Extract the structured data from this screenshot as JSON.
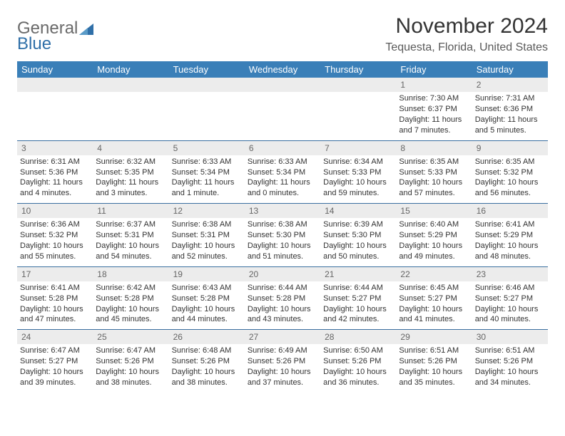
{
  "logo": {
    "text1": "General",
    "text2": "Blue"
  },
  "title": "November 2024",
  "location": "Tequesta, Florida, United States",
  "colors": {
    "header_bg": "#3a7fb8",
    "header_text": "#ffffff",
    "grid_line": "#3a6fa0",
    "daynum_bg": "#ececec",
    "blank_bg": "#f0f0f0",
    "text": "#333333",
    "title_text": "#333333",
    "location_text": "#5a5a5a",
    "logo_gray": "#6a6a6a",
    "logo_blue": "#2f6fa8"
  },
  "day_headers": [
    "Sunday",
    "Monday",
    "Tuesday",
    "Wednesday",
    "Thursday",
    "Friday",
    "Saturday"
  ],
  "weeks": [
    {
      "nums": [
        "",
        "",
        "",
        "",
        "",
        "1",
        "2"
      ],
      "cells": [
        null,
        null,
        null,
        null,
        null,
        {
          "sunrise": "Sunrise: 7:30 AM",
          "sunset": "Sunset: 6:37 PM",
          "daylight": "Daylight: 11 hours and 7 minutes."
        },
        {
          "sunrise": "Sunrise: 7:31 AM",
          "sunset": "Sunset: 6:36 PM",
          "daylight": "Daylight: 11 hours and 5 minutes."
        }
      ]
    },
    {
      "nums": [
        "3",
        "4",
        "5",
        "6",
        "7",
        "8",
        "9"
      ],
      "cells": [
        {
          "sunrise": "Sunrise: 6:31 AM",
          "sunset": "Sunset: 5:36 PM",
          "daylight": "Daylight: 11 hours and 4 minutes."
        },
        {
          "sunrise": "Sunrise: 6:32 AM",
          "sunset": "Sunset: 5:35 PM",
          "daylight": "Daylight: 11 hours and 3 minutes."
        },
        {
          "sunrise": "Sunrise: 6:33 AM",
          "sunset": "Sunset: 5:34 PM",
          "daylight": "Daylight: 11 hours and 1 minute."
        },
        {
          "sunrise": "Sunrise: 6:33 AM",
          "sunset": "Sunset: 5:34 PM",
          "daylight": "Daylight: 11 hours and 0 minutes."
        },
        {
          "sunrise": "Sunrise: 6:34 AM",
          "sunset": "Sunset: 5:33 PM",
          "daylight": "Daylight: 10 hours and 59 minutes."
        },
        {
          "sunrise": "Sunrise: 6:35 AM",
          "sunset": "Sunset: 5:33 PM",
          "daylight": "Daylight: 10 hours and 57 minutes."
        },
        {
          "sunrise": "Sunrise: 6:35 AM",
          "sunset": "Sunset: 5:32 PM",
          "daylight": "Daylight: 10 hours and 56 minutes."
        }
      ]
    },
    {
      "nums": [
        "10",
        "11",
        "12",
        "13",
        "14",
        "15",
        "16"
      ],
      "cells": [
        {
          "sunrise": "Sunrise: 6:36 AM",
          "sunset": "Sunset: 5:32 PM",
          "daylight": "Daylight: 10 hours and 55 minutes."
        },
        {
          "sunrise": "Sunrise: 6:37 AM",
          "sunset": "Sunset: 5:31 PM",
          "daylight": "Daylight: 10 hours and 54 minutes."
        },
        {
          "sunrise": "Sunrise: 6:38 AM",
          "sunset": "Sunset: 5:31 PM",
          "daylight": "Daylight: 10 hours and 52 minutes."
        },
        {
          "sunrise": "Sunrise: 6:38 AM",
          "sunset": "Sunset: 5:30 PM",
          "daylight": "Daylight: 10 hours and 51 minutes."
        },
        {
          "sunrise": "Sunrise: 6:39 AM",
          "sunset": "Sunset: 5:30 PM",
          "daylight": "Daylight: 10 hours and 50 minutes."
        },
        {
          "sunrise": "Sunrise: 6:40 AM",
          "sunset": "Sunset: 5:29 PM",
          "daylight": "Daylight: 10 hours and 49 minutes."
        },
        {
          "sunrise": "Sunrise: 6:41 AM",
          "sunset": "Sunset: 5:29 PM",
          "daylight": "Daylight: 10 hours and 48 minutes."
        }
      ]
    },
    {
      "nums": [
        "17",
        "18",
        "19",
        "20",
        "21",
        "22",
        "23"
      ],
      "cells": [
        {
          "sunrise": "Sunrise: 6:41 AM",
          "sunset": "Sunset: 5:28 PM",
          "daylight": "Daylight: 10 hours and 47 minutes."
        },
        {
          "sunrise": "Sunrise: 6:42 AM",
          "sunset": "Sunset: 5:28 PM",
          "daylight": "Daylight: 10 hours and 45 minutes."
        },
        {
          "sunrise": "Sunrise: 6:43 AM",
          "sunset": "Sunset: 5:28 PM",
          "daylight": "Daylight: 10 hours and 44 minutes."
        },
        {
          "sunrise": "Sunrise: 6:44 AM",
          "sunset": "Sunset: 5:28 PM",
          "daylight": "Daylight: 10 hours and 43 minutes."
        },
        {
          "sunrise": "Sunrise: 6:44 AM",
          "sunset": "Sunset: 5:27 PM",
          "daylight": "Daylight: 10 hours and 42 minutes."
        },
        {
          "sunrise": "Sunrise: 6:45 AM",
          "sunset": "Sunset: 5:27 PM",
          "daylight": "Daylight: 10 hours and 41 minutes."
        },
        {
          "sunrise": "Sunrise: 6:46 AM",
          "sunset": "Sunset: 5:27 PM",
          "daylight": "Daylight: 10 hours and 40 minutes."
        }
      ]
    },
    {
      "nums": [
        "24",
        "25",
        "26",
        "27",
        "28",
        "29",
        "30"
      ],
      "cells": [
        {
          "sunrise": "Sunrise: 6:47 AM",
          "sunset": "Sunset: 5:27 PM",
          "daylight": "Daylight: 10 hours and 39 minutes."
        },
        {
          "sunrise": "Sunrise: 6:47 AM",
          "sunset": "Sunset: 5:26 PM",
          "daylight": "Daylight: 10 hours and 38 minutes."
        },
        {
          "sunrise": "Sunrise: 6:48 AM",
          "sunset": "Sunset: 5:26 PM",
          "daylight": "Daylight: 10 hours and 38 minutes."
        },
        {
          "sunrise": "Sunrise: 6:49 AM",
          "sunset": "Sunset: 5:26 PM",
          "daylight": "Daylight: 10 hours and 37 minutes."
        },
        {
          "sunrise": "Sunrise: 6:50 AM",
          "sunset": "Sunset: 5:26 PM",
          "daylight": "Daylight: 10 hours and 36 minutes."
        },
        {
          "sunrise": "Sunrise: 6:51 AM",
          "sunset": "Sunset: 5:26 PM",
          "daylight": "Daylight: 10 hours and 35 minutes."
        },
        {
          "sunrise": "Sunrise: 6:51 AM",
          "sunset": "Sunset: 5:26 PM",
          "daylight": "Daylight: 10 hours and 34 minutes."
        }
      ]
    }
  ]
}
